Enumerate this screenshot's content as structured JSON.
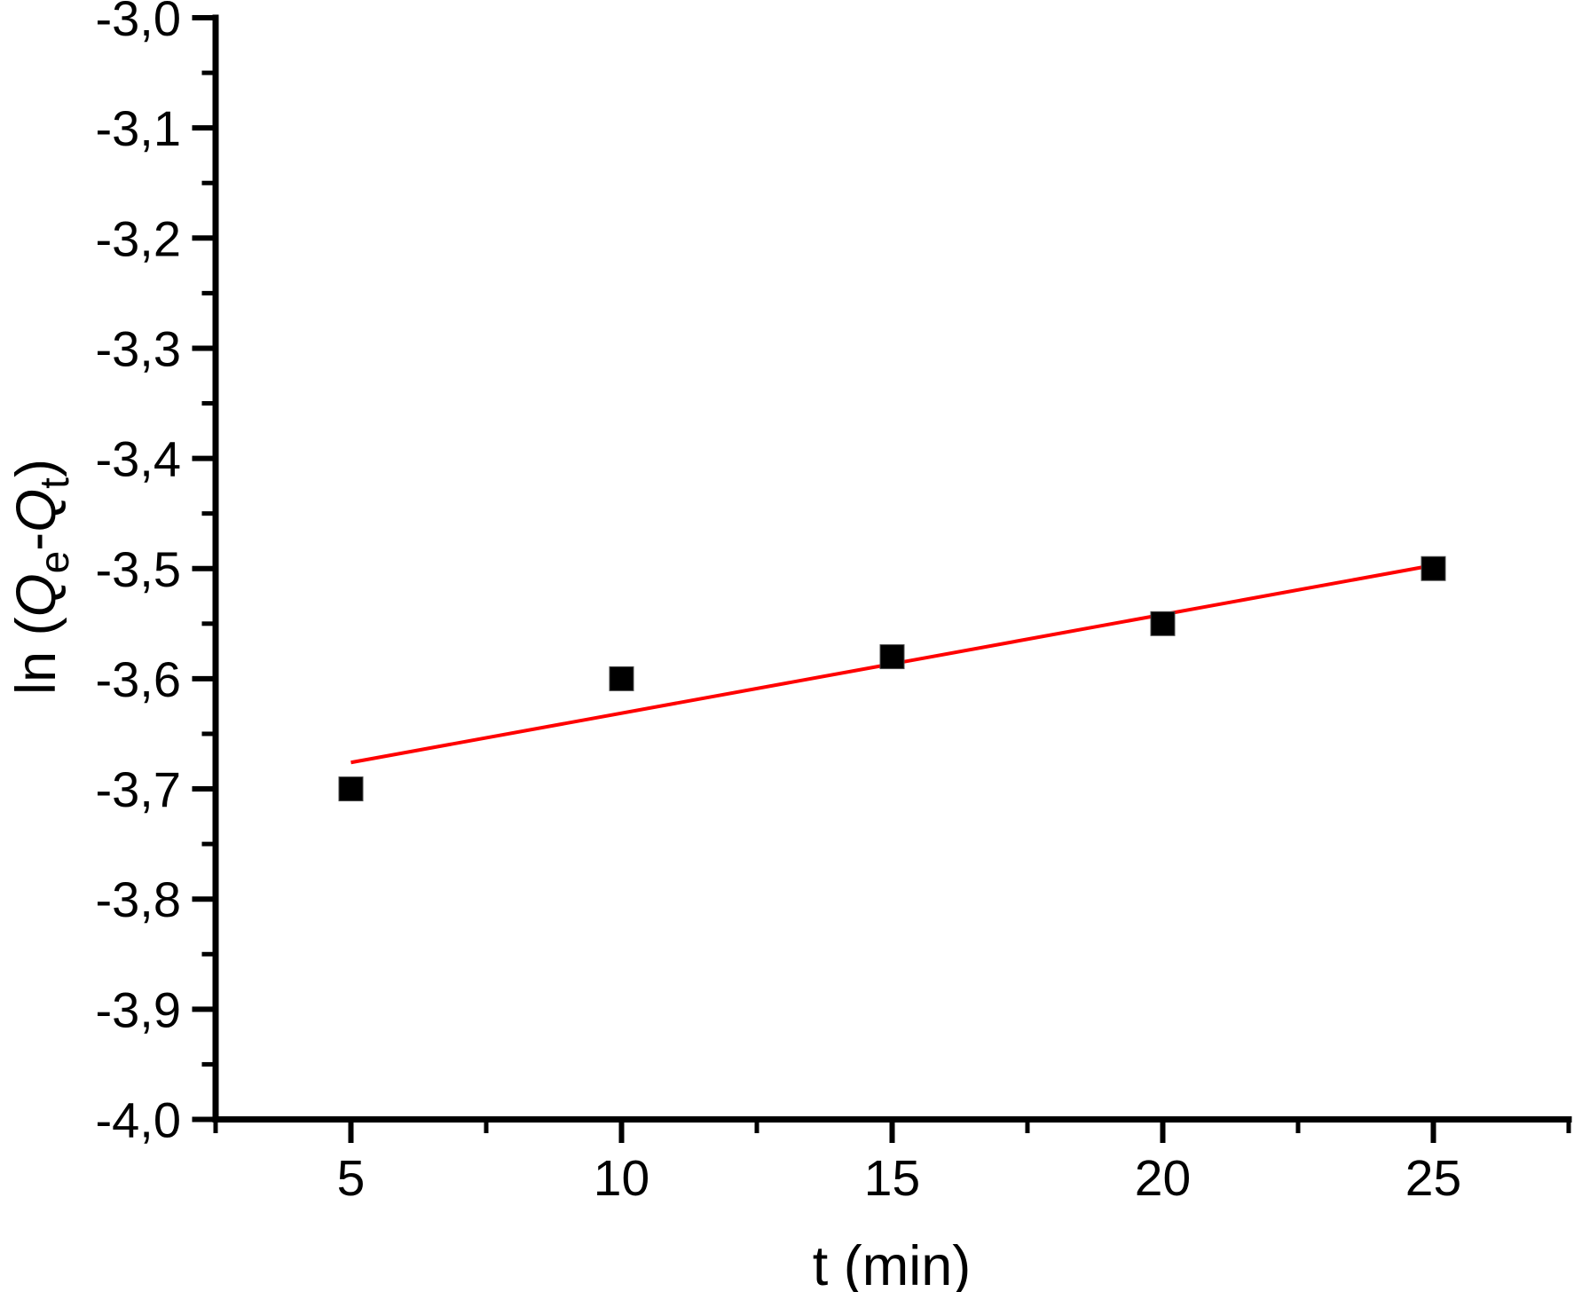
{
  "chart_data": {
    "type": "scatter",
    "title": "",
    "xlabel": "t (min)",
    "ylabel_plain": "ln (Qe-Qt)",
    "ylabel_segments": [
      {
        "text": "ln (",
        "italic": false,
        "sub": false
      },
      {
        "text": "Q",
        "italic": true,
        "sub": false
      },
      {
        "text": "e",
        "italic": false,
        "sub": true
      },
      {
        "text": "-",
        "italic": false,
        "sub": false
      },
      {
        "text": "Q",
        "italic": true,
        "sub": false
      },
      {
        "text": "t",
        "italic": false,
        "sub": true
      },
      {
        "text": ")",
        "italic": false,
        "sub": false
      }
    ],
    "x": [
      5,
      10,
      15,
      20,
      25
    ],
    "y": [
      -3.7,
      -3.6,
      -3.58,
      -3.55,
      -3.5
    ],
    "points": [
      {
        "t": 5,
        "value": -3.7
      },
      {
        "t": 10,
        "value": -3.6
      },
      {
        "t": 15,
        "value": -3.58
      },
      {
        "t": 20,
        "value": -3.55
      },
      {
        "t": 25,
        "value": -3.5
      }
    ],
    "fit_line": {
      "x1": 5,
      "y1": -3.676,
      "x2": 25,
      "y2": -3.497,
      "color": "#ff0000"
    },
    "xlim": [
      2.5,
      27.5
    ],
    "ylim": [
      -4.0,
      -3.0
    ],
    "x_major_ticks": [
      {
        "value": 5,
        "label": "5"
      },
      {
        "value": 10,
        "label": "10"
      },
      {
        "value": 15,
        "label": "15"
      },
      {
        "value": 20,
        "label": "20"
      },
      {
        "value": 25,
        "label": "25"
      }
    ],
    "y_major_ticks": [
      {
        "value": -3.0,
        "label": "-3,0"
      },
      {
        "value": -3.1,
        "label": "-3,1"
      },
      {
        "value": -3.2,
        "label": "-3,2"
      },
      {
        "value": -3.3,
        "label": "-3,3"
      },
      {
        "value": -3.4,
        "label": "-3,4"
      },
      {
        "value": -3.5,
        "label": "-3,5"
      },
      {
        "value": -3.6,
        "label": "-3,6"
      },
      {
        "value": -3.7,
        "label": "-3,7"
      },
      {
        "value": -3.8,
        "label": "-3,8"
      },
      {
        "value": -3.9,
        "label": "-3,9"
      },
      {
        "value": -4.0,
        "label": "-4,0"
      }
    ],
    "x_minor_step": 2.5,
    "y_minor_step": 0.05,
    "decimal_separator": ",",
    "grid": false,
    "legend": null,
    "marker": {
      "shape": "square",
      "size": 27,
      "color": "#000000"
    },
    "colors": {
      "background": "#ffffff",
      "axis": "#000000",
      "text": "#000000",
      "fit_line": "#ff0000"
    }
  }
}
